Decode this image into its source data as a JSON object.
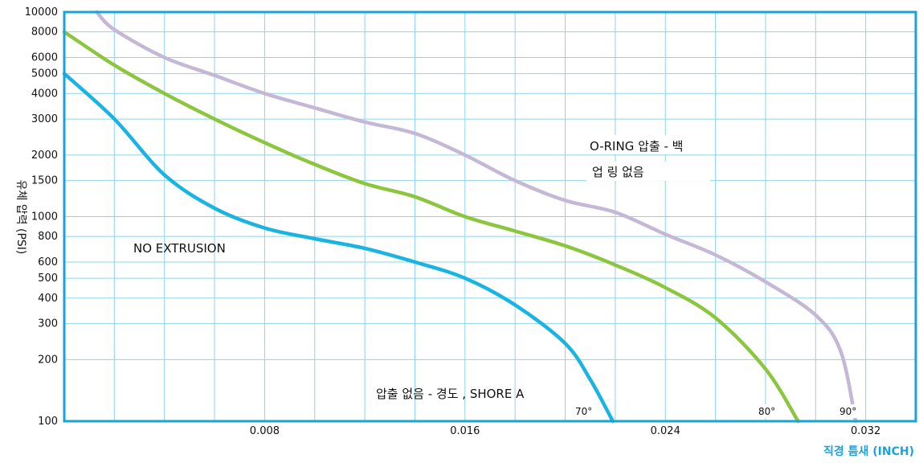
{
  "chart_data": {
    "type": "line",
    "title": "",
    "xlabel": "직경 틈새 (INCH)",
    "ylabel": "유체 압력 (PSI)",
    "xlim": [
      0,
      0.034
    ],
    "ylim": [
      100,
      10000
    ],
    "y_scale": "log",
    "grid": true,
    "x_ticks": [
      "0.008",
      "0.016",
      "0.024",
      "0.032"
    ],
    "x_tick_values": [
      0.008,
      0.016,
      0.024,
      0.032
    ],
    "y_ticks": [
      "100",
      "200",
      "300",
      "400",
      "500",
      "600",
      "800",
      "1000",
      "1500",
      "2000",
      "3000",
      "4000",
      "5000",
      "6000",
      "8000",
      "10000"
    ],
    "y_tick_values": [
      100,
      200,
      300,
      400,
      500,
      600,
      800,
      1000,
      1500,
      2000,
      3000,
      4000,
      5000,
      6000,
      8000,
      10000
    ],
    "series": [
      {
        "name": "70°",
        "color": "#1ab4e3",
        "points": [
          [
            0.0,
            5000
          ],
          [
            0.002,
            3000
          ],
          [
            0.004,
            1600
          ],
          [
            0.006,
            1100
          ],
          [
            0.008,
            880
          ],
          [
            0.01,
            780
          ],
          [
            0.012,
            700
          ],
          [
            0.014,
            600
          ],
          [
            0.016,
            500
          ],
          [
            0.018,
            370
          ],
          [
            0.02,
            240
          ],
          [
            0.021,
            160
          ],
          [
            0.0219,
            100
          ]
        ]
      },
      {
        "name": "80°",
        "color": "#8cc63f",
        "points": [
          [
            0.0,
            8000
          ],
          [
            0.002,
            5500
          ],
          [
            0.004,
            4000
          ],
          [
            0.006,
            3000
          ],
          [
            0.008,
            2300
          ],
          [
            0.01,
            1800
          ],
          [
            0.012,
            1450
          ],
          [
            0.014,
            1250
          ],
          [
            0.016,
            1000
          ],
          [
            0.018,
            850
          ],
          [
            0.02,
            720
          ],
          [
            0.022,
            580
          ],
          [
            0.024,
            450
          ],
          [
            0.026,
            320
          ],
          [
            0.028,
            180
          ],
          [
            0.0293,
            100
          ]
        ]
      },
      {
        "name": "90°",
        "color": "#c5b8d6",
        "points": [
          [
            0.0013,
            10000
          ],
          [
            0.002,
            8200
          ],
          [
            0.004,
            6000
          ],
          [
            0.006,
            4900
          ],
          [
            0.008,
            4000
          ],
          [
            0.01,
            3400
          ],
          [
            0.012,
            2900
          ],
          [
            0.014,
            2550
          ],
          [
            0.016,
            2000
          ],
          [
            0.018,
            1500
          ],
          [
            0.02,
            1200
          ],
          [
            0.022,
            1050
          ],
          [
            0.024,
            820
          ],
          [
            0.026,
            650
          ],
          [
            0.028,
            480
          ],
          [
            0.03,
            330
          ],
          [
            0.031,
            220
          ],
          [
            0.0316,
            100
          ]
        ]
      }
    ],
    "annotations": {
      "no_extrusion": "NO EXTRUSION",
      "oring_line1": "O-RING 압출 - 백",
      "oring_line2": "업 링 없음",
      "hardness": "압출 없음 - 경도 , SHORE A",
      "deg70": "70°",
      "deg80": "80°",
      "deg90": "90°"
    },
    "colors": {
      "frame": "#1aa3d6",
      "grid": "#8fd3ea",
      "xlabel": "#1aa3d6"
    }
  }
}
